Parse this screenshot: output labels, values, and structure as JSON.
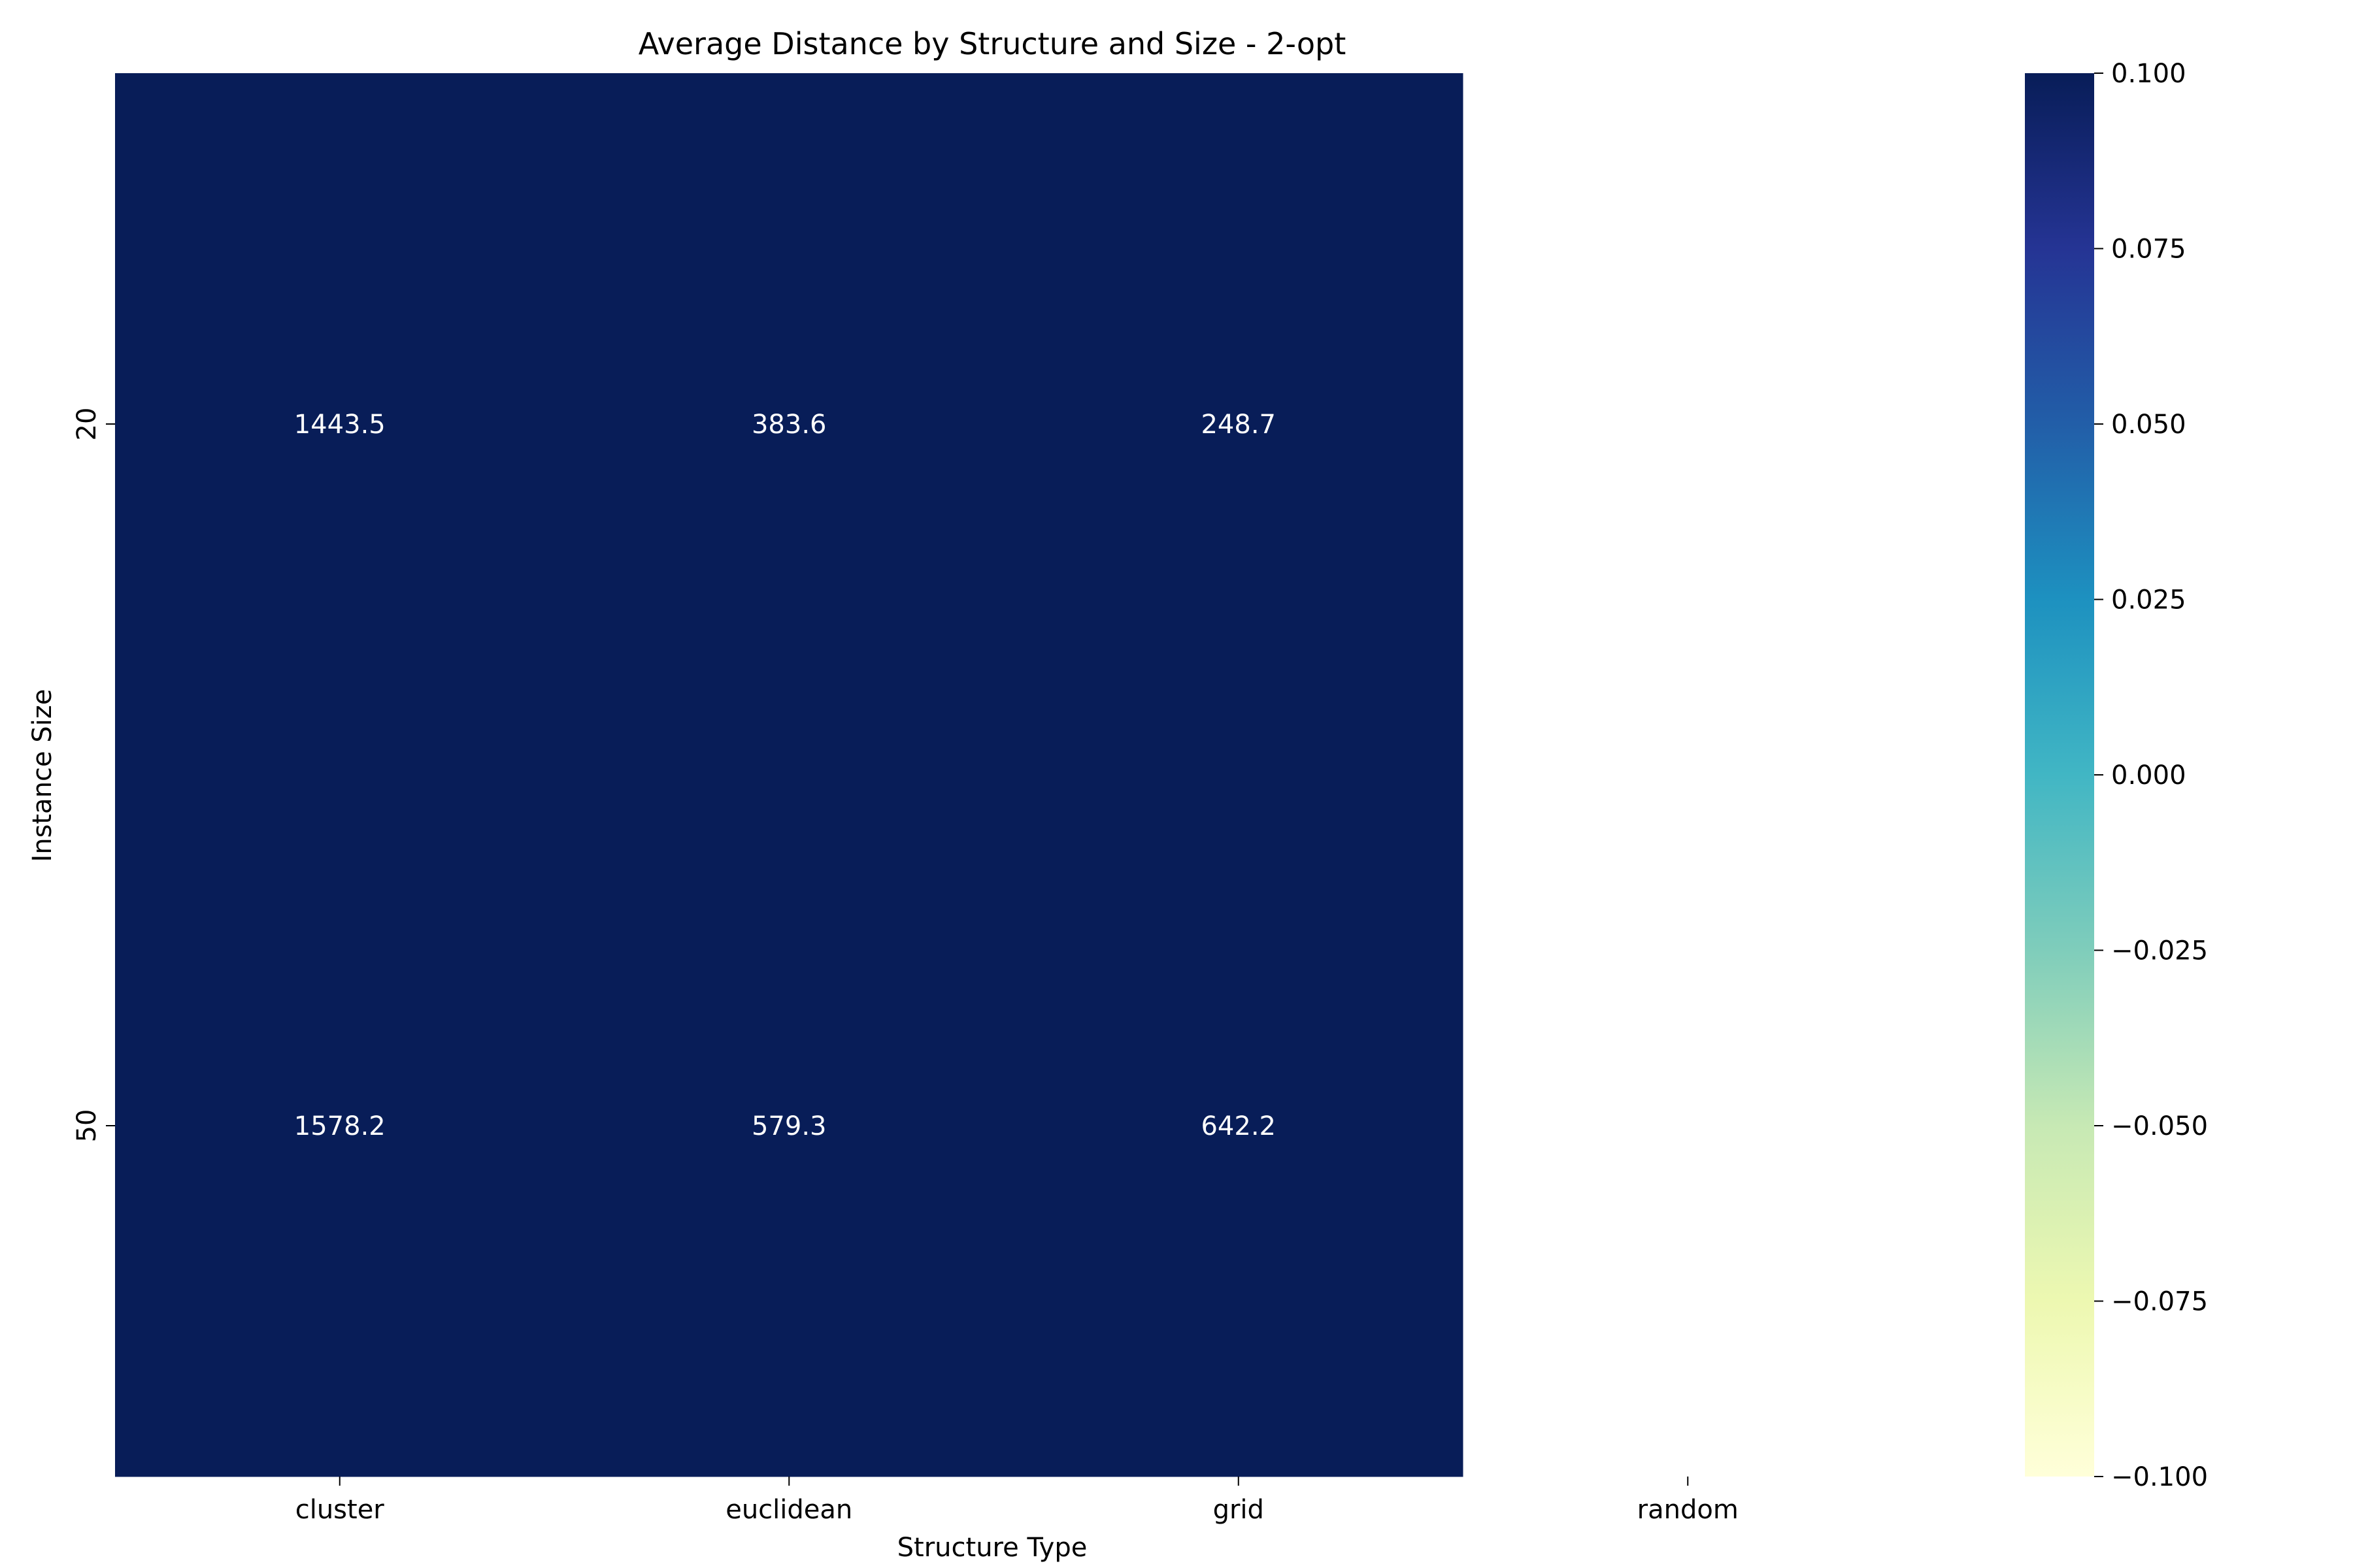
{
  "chart_data": {
    "type": "heatmap",
    "title": "Average Distance by Structure and Size - 2-opt",
    "xlabel": "Structure Type",
    "ylabel": "Instance Size",
    "x_categories": [
      "cluster",
      "euclidean",
      "grid",
      "random"
    ],
    "y_categories": [
      "20",
      "50"
    ],
    "values": [
      [
        1443.5,
        383.6,
        248.7,
        null
      ],
      [
        1578.2,
        579.3,
        642.2,
        null
      ]
    ],
    "cell_labels": [
      [
        "1443.5",
        "383.6",
        "248.7",
        ""
      ],
      [
        "1578.2",
        "579.3",
        "642.2",
        ""
      ]
    ],
    "colormap": "YlGnBu",
    "cell_color": "#081d58",
    "missing_color": "#ffffff",
    "colorbar": {
      "range": [
        -0.1,
        0.1
      ],
      "ticks": [
        0.1,
        0.075,
        0.05,
        0.025,
        0.0,
        -0.025,
        -0.05,
        -0.075,
        -0.1
      ],
      "tick_labels": [
        "0.100",
        "0.075",
        "0.050",
        "0.025",
        "0.000",
        "−0.025",
        "−0.050",
        "−0.075",
        "−0.100"
      ],
      "colors": [
        "#ffffd9",
        "#edf8b1",
        "#c7e9b4",
        "#7fcdbb",
        "#41b6c4",
        "#1d91c0",
        "#225ea8",
        "#253494",
        "#081d58"
      ]
    }
  }
}
